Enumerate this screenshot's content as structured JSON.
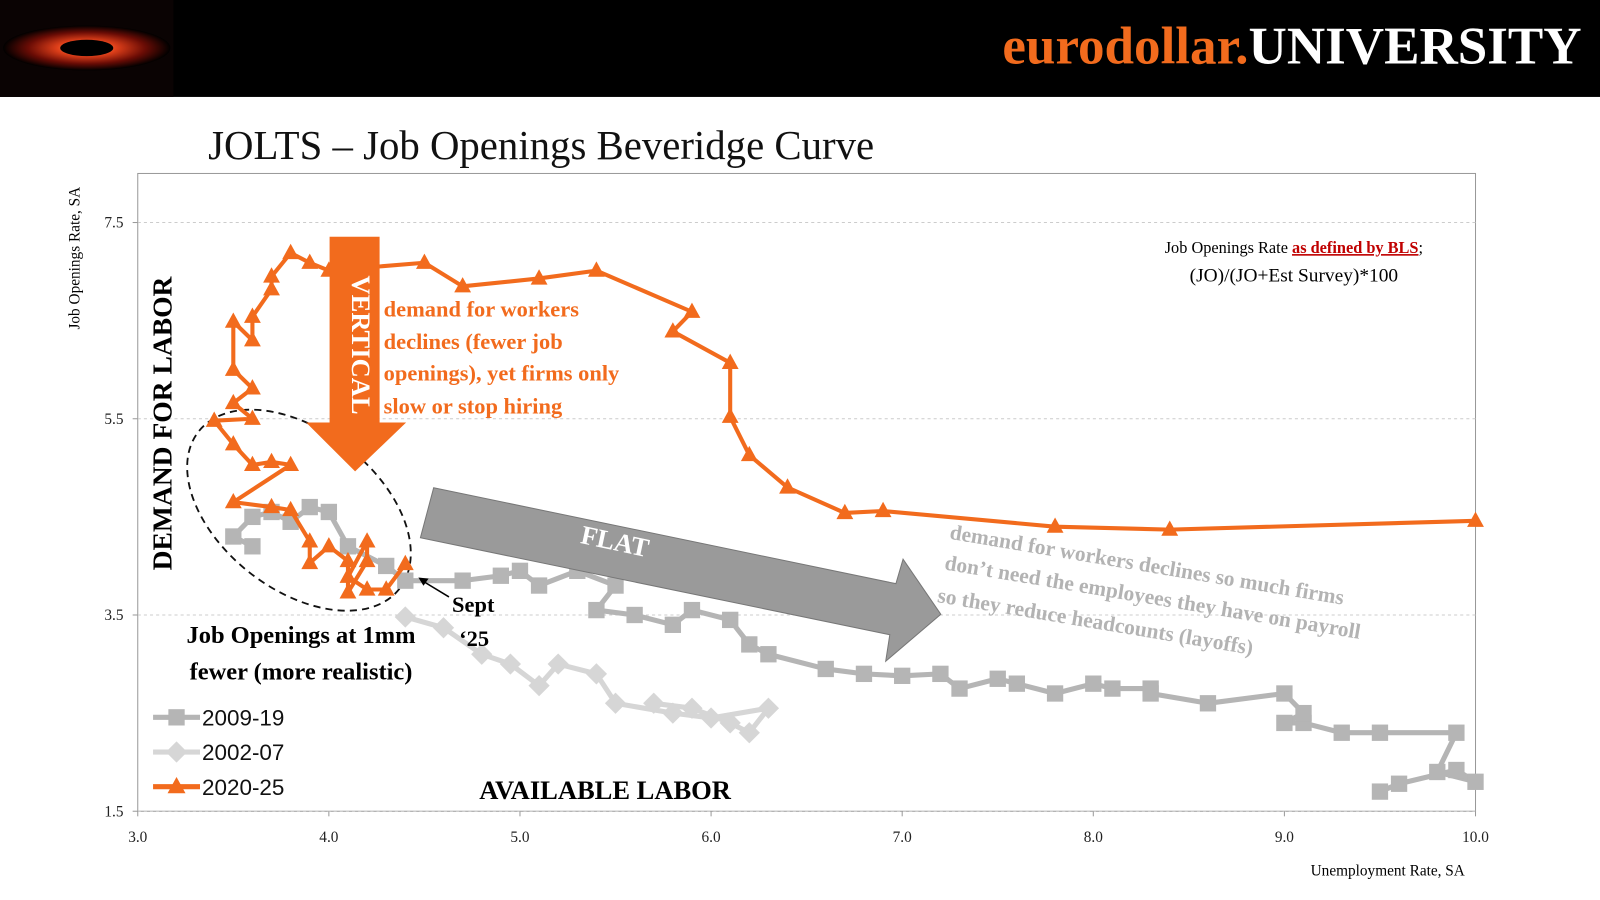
{
  "header": {
    "brand": "eurodollar.",
    "brand2": "UNIVERSITY"
  },
  "chart_data": {
    "type": "line",
    "title": "JOLTS – Job Openings Beveridge Curve",
    "x_label": "Unemployment Rate, SA",
    "y_label": "Job Openings Rate, SA",
    "xlim": [
      3,
      10
    ],
    "ylim": [
      1.5,
      8.0
    ],
    "xticks": [
      {
        "value": 3,
        "label": "3.0"
      },
      {
        "value": 4,
        "label": "4.0"
      },
      {
        "value": 5,
        "label": "5.0"
      },
      {
        "value": 6,
        "label": "6.0"
      },
      {
        "value": 7,
        "label": "7.0"
      },
      {
        "value": 8,
        "label": "8.0"
      },
      {
        "value": 9,
        "label": "9.0"
      },
      {
        "value": 10,
        "label": "10.0"
      }
    ],
    "yticks": [
      1.5,
      3.5,
      5.5,
      7.5
    ],
    "grid": true,
    "legend": "lower left",
    "series": [
      {
        "name": "2009-19",
        "color": "#b5b5b5",
        "marker": "square",
        "x": [
          9.5,
          9.6,
          9.9,
          10.0,
          9.8,
          9.9,
          9.5,
          9.3,
          9.1,
          9.0,
          9.1,
          9.0,
          8.6,
          8.3,
          8.3,
          8.1,
          8.0,
          7.8,
          7.6,
          7.5,
          7.3,
          7.2,
          7.0,
          6.8,
          6.6,
          6.3,
          6.2,
          6.1,
          5.9,
          5.8,
          5.6,
          5.4,
          5.5,
          5.3,
          5.1,
          5.0,
          4.9,
          4.7,
          4.4,
          4.3,
          4.1,
          4.0,
          3.9,
          3.8,
          3.7,
          3.6,
          3.5,
          3.6
        ],
        "y": [
          1.7,
          1.78,
          1.92,
          1.8,
          1.9,
          2.3,
          2.3,
          2.3,
          2.4,
          2.4,
          2.5,
          2.7,
          2.6,
          2.7,
          2.75,
          2.75,
          2.8,
          2.7,
          2.8,
          2.85,
          2.75,
          2.9,
          2.88,
          2.9,
          2.95,
          3.1,
          3.2,
          3.45,
          3.55,
          3.4,
          3.5,
          3.55,
          3.8,
          3.95,
          3.8,
          3.95,
          3.9,
          3.85,
          3.85,
          4.0,
          4.2,
          4.55,
          4.6,
          4.45,
          4.55,
          4.5,
          4.3,
          4.2
        ]
      },
      {
        "name": "2002-07",
        "color": "#d6d6d6",
        "marker": "diamond",
        "x": [
          5.7,
          5.9,
          6.1,
          6.2,
          6.3,
          6.0,
          5.8,
          5.5,
          5.4,
          5.2,
          5.1,
          4.95,
          4.8,
          4.6,
          4.4
        ],
        "y": [
          2.6,
          2.55,
          2.4,
          2.3,
          2.55,
          2.45,
          2.5,
          2.6,
          2.9,
          3.0,
          2.78,
          3.0,
          3.1,
          3.37,
          3.48
        ]
      },
      {
        "name": "2020-25",
        "color": "#f26b1d",
        "marker": "triangle",
        "x": [
          10.0,
          8.4,
          7.8,
          6.9,
          6.7,
          6.4,
          6.2,
          6.1,
          6.1,
          5.8,
          5.9,
          5.4,
          5.1,
          4.7,
          4.5,
          4.0,
          3.9,
          3.8,
          3.7,
          3.7,
          3.6,
          3.6,
          3.5,
          3.5,
          3.6,
          3.5,
          3.6,
          3.4,
          3.5,
          3.6,
          3.7,
          3.8,
          3.5,
          3.7,
          3.8,
          3.9,
          3.9,
          4.0,
          4.1,
          4.1,
          4.2,
          4.2,
          4.1,
          4.2,
          4.3,
          4.4
        ],
        "y": [
          4.46,
          4.37,
          4.4,
          4.56,
          4.54,
          4.8,
          5.13,
          5.52,
          6.07,
          6.39,
          6.59,
          7.01,
          6.93,
          6.85,
          7.09,
          7.01,
          7.09,
          7.19,
          6.95,
          6.82,
          6.54,
          6.3,
          6.49,
          6.0,
          5.81,
          5.66,
          5.5,
          5.48,
          5.24,
          5.03,
          5.06,
          5.03,
          4.65,
          4.6,
          4.57,
          4.25,
          4.03,
          4.2,
          4.05,
          3.73,
          4.05,
          4.25,
          3.89,
          3.76,
          3.76,
          4.02
        ]
      }
    ],
    "annotations": {
      "demand": "DEMAND FOR LABOR",
      "vertical": "VERTICAL",
      "flat": "FLAT",
      "available": "AVAILABLE LABOR",
      "orange_text": [
        "demand for workers",
        "declines (fewer job",
        "openings), yet firms only",
        "slow or stop hiring"
      ],
      "gray_text": [
        "demand for workers declines so much firms",
        "don’t need the employees they have on payroll",
        "so they reduce headcounts (layoffs)"
      ],
      "sept": [
        "Sept",
        "‘25"
      ],
      "adjusted": [
        "Job Openings at 1mm",
        "fewer (more realistic)"
      ],
      "note_prefix": "Job Openings Rate",
      "note_link": "as defined by BLS",
      "note_suffix": ";",
      "note_formula": "(JO)/(JO+Est Survey)*100"
    }
  }
}
